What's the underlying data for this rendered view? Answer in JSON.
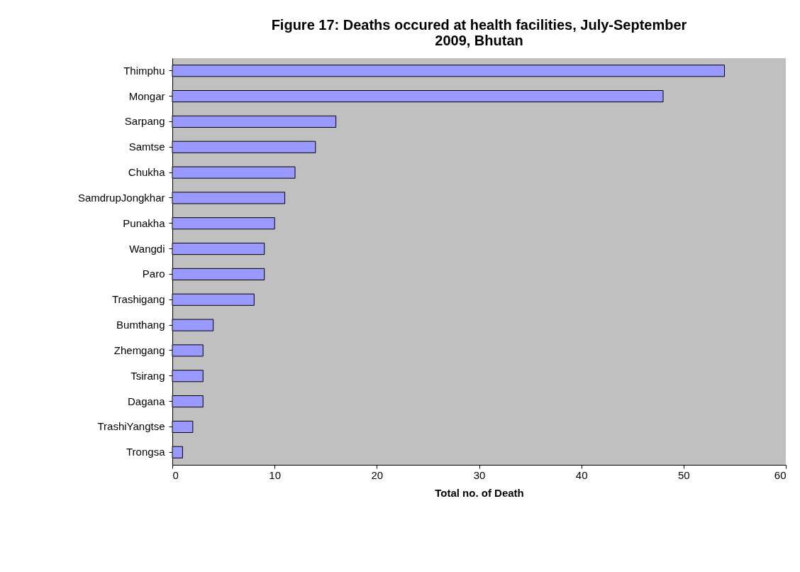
{
  "chart_data": {
    "type": "bar",
    "orientation": "horizontal",
    "title": "Figure 17: Deaths occured at health facilities, July-September 2009, Bhutan",
    "xlabel": "Total no. of Death",
    "categories": [
      "Thimphu",
      "Mongar",
      "Sarpang",
      "Samtse",
      "Chukha",
      "SamdrupJongkhar",
      "Punakha",
      "Wangdi",
      "Paro",
      "Trashigang",
      "Bumthang",
      "Zhemgang",
      "Tsirang",
      "Dagana",
      "TrashiYangtse",
      "Trongsa"
    ],
    "values": [
      54,
      48,
      16,
      14,
      12,
      11,
      10,
      9,
      9,
      8,
      4,
      3,
      3,
      3,
      2,
      1
    ],
    "color": "#9999ff",
    "xlim": [
      0,
      60
    ],
    "xticks": [
      0,
      10,
      20,
      30,
      40,
      50,
      60
    ],
    "grid": false
  }
}
